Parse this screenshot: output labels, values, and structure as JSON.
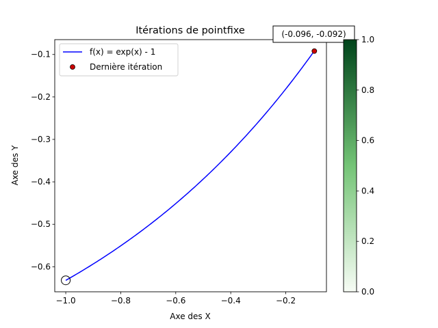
{
  "chart_data": {
    "type": "line",
    "title": "Itérations de pointfixe",
    "xlabel": "Axe des X",
    "ylabel": "Axe des Y",
    "xlim": [
      -1.04,
      -0.052
    ],
    "ylim": [
      -0.659,
      -0.065
    ],
    "grid": false,
    "legend_position": "upper-left",
    "x_ticks": [
      -1.0,
      -0.8,
      -0.6,
      -0.4,
      -0.2
    ],
    "x_tick_labels": [
      "−1.0",
      "−0.8",
      "−0.6",
      "−0.4",
      "−0.2"
    ],
    "y_ticks": [
      -0.6,
      -0.5,
      -0.4,
      -0.3,
      -0.2,
      -0.1
    ],
    "y_tick_labels": [
      "−0.6",
      "−0.5",
      "−0.4",
      "−0.3",
      "−0.2",
      "−0.1"
    ],
    "series": [
      {
        "name": "f(x) = exp(x) - 1",
        "type": "line",
        "color": "#0000ff",
        "function": "exp(x) - 1",
        "x_range": [
          -1.0,
          -0.096
        ]
      },
      {
        "name": "Dernière itération",
        "type": "scatter",
        "color": "#cc0000",
        "edge_color": "#000000",
        "points": [
          {
            "x": -0.096,
            "y": -0.092
          }
        ]
      }
    ],
    "start_marker": {
      "x": -1.0,
      "y": -0.632
    },
    "annotation": {
      "text": "(-0.096, -0.092)",
      "x": -0.096,
      "y": -0.092
    },
    "colorbar": {
      "colormap": "Greens",
      "range": [
        0.0,
        1.0
      ],
      "ticks": [
        0.0,
        0.2,
        0.4,
        0.6,
        0.8,
        1.0
      ],
      "tick_labels": [
        "0.0",
        "0.2",
        "0.4",
        "0.6",
        "0.8",
        "1.0"
      ],
      "color_low": "#f7fcf5",
      "color_mid": "#74c476",
      "color_high": "#00441b"
    }
  }
}
